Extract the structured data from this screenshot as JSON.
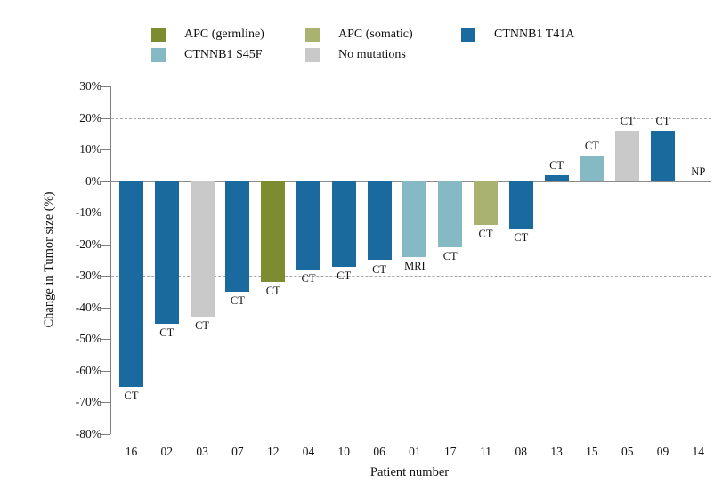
{
  "figure": {
    "title": ""
  },
  "legend": {
    "items": [
      {
        "label": "APC (germline)",
        "color_key": "apc_germline"
      },
      {
        "label": "APC (somatic)",
        "color_key": "apc_somatic"
      },
      {
        "label": "CTNNB1 T41A",
        "color_key": "ctnnb1_t41a"
      },
      {
        "label": "CTNNB1 S45F",
        "color_key": "ctnnb1_s45f"
      },
      {
        "label": "No mutations",
        "color_key": "no_mutations"
      }
    ]
  },
  "colors": {
    "apc_germline": "#7d8b31",
    "apc_somatic": "#a9b26e",
    "ctnnb1_t41a": "#1a6a9f",
    "ctnnb1_s45f": "#85bac5",
    "no_mutations": "#c9c9c9",
    "axis": "#7f7f7f",
    "zero_line": "#8c8c8c",
    "gridline_dashed": "#a8a8a8",
    "text": "#111111"
  },
  "chart_data": {
    "type": "bar",
    "title": "",
    "xlabel": "Patient number",
    "ylabel": "Change in Tumor size (%)",
    "ylim": [
      -80,
      30
    ],
    "ytick_interval": 10,
    "ytick_labels": [
      "30%",
      "20%",
      "10%",
      "0%",
      "-10%",
      "-20%",
      "-30%",
      "-40%",
      "-50%",
      "-60%",
      "-70%",
      "-80%"
    ],
    "gridlines": {
      "dashed_at": [
        20,
        -30
      ],
      "solid_at": [
        0
      ]
    },
    "legend_position": "top",
    "grid": "partial-dashed",
    "categories": [
      "16",
      "02",
      "03",
      "07",
      "12",
      "04",
      "10",
      "06",
      "01",
      "17",
      "11",
      "08",
      "13",
      "15",
      "05",
      "09",
      "14"
    ],
    "values": [
      -65,
      -45,
      -43,
      -35,
      -32,
      -28,
      -27,
      -25,
      -24,
      -21,
      -14,
      -15,
      2,
      8,
      16,
      16,
      null
    ],
    "bar_groups": [
      "ctnnb1_t41a",
      "ctnnb1_t41a",
      "no_mutations",
      "ctnnb1_t41a",
      "apc_germline",
      "ctnnb1_t41a",
      "ctnnb1_t41a",
      "ctnnb1_t41a",
      "ctnnb1_s45f",
      "ctnnb1_s45f",
      "apc_somatic",
      "ctnnb1_t41a",
      "ctnnb1_t41a",
      "ctnnb1_s45f",
      "no_mutations",
      "ctnnb1_t41a",
      null
    ],
    "bar_labels": [
      "CT",
      "CT",
      "CT",
      "CT",
      "CT",
      "CT",
      "CT",
      "CT",
      "MRI",
      "CT",
      "CT",
      "CT",
      "CT",
      "CT",
      "CT",
      "CT",
      "NP"
    ]
  }
}
